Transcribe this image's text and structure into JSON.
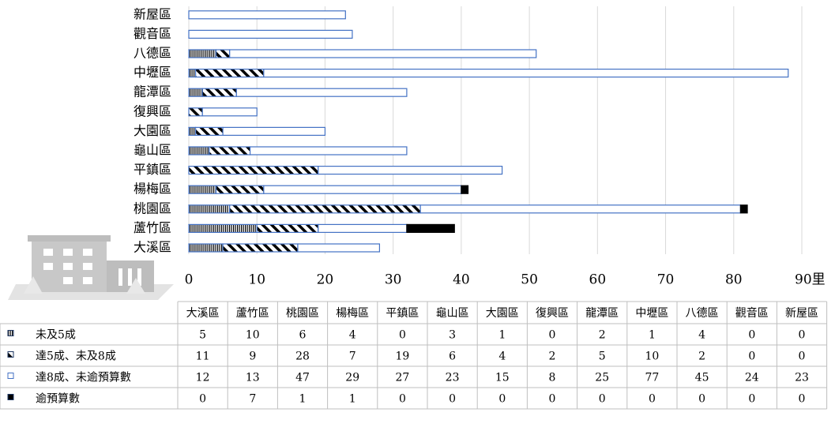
{
  "chart_data": {
    "type": "stacked-bar-horizontal",
    "categories": [
      "大溪區",
      "蘆竹區",
      "桃園區",
      "楊梅區",
      "平鎮區",
      "龜山區",
      "大園區",
      "復興區",
      "龍潭區",
      "中壢區",
      "八德區",
      "觀音區",
      "新屋區"
    ],
    "series": [
      {
        "name": "未及5成",
        "color": "#000000",
        "values": [
          5,
          10,
          6,
          4,
          0,
          3,
          1,
          0,
          2,
          1,
          4,
          0,
          0
        ]
      },
      {
        "name": "達5成、未及8成",
        "color": "#000000",
        "values": [
          11,
          9,
          28,
          7,
          19,
          6,
          4,
          2,
          5,
          10,
          2,
          0,
          0
        ]
      },
      {
        "name": "達8成、未逾預算數",
        "color": "#4472c4",
        "values": [
          12,
          13,
          47,
          29,
          27,
          23,
          15,
          8,
          25,
          77,
          45,
          24,
          23
        ]
      },
      {
        "name": "逾預算數",
        "color": "#000000",
        "values": [
          0,
          7,
          1,
          1,
          0,
          0,
          0,
          0,
          0,
          0,
          0,
          0,
          0
        ]
      }
    ],
    "xlim": [
      0,
      90
    ],
    "xticks": [
      0,
      10,
      20,
      30,
      40,
      50,
      60,
      70,
      80,
      {
        "value": 90,
        "label": "90里"
      }
    ],
    "grid": true
  }
}
